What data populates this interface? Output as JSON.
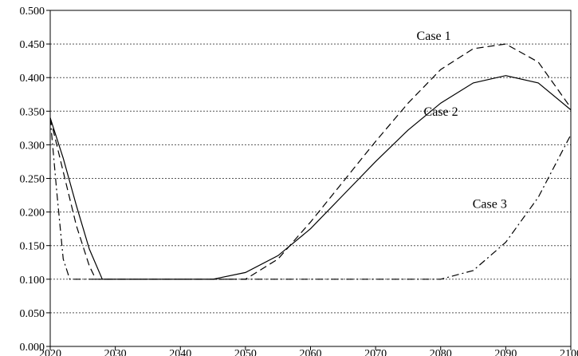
{
  "chart_data": {
    "type": "line",
    "title": "",
    "xlabel": "",
    "ylabel": "",
    "xlim": [
      2020,
      2100
    ],
    "ylim": [
      0.0,
      0.5
    ],
    "grid": "horizontal dotted",
    "x_ticks": [
      "2020",
      "2030",
      "2040",
      "2050",
      "2060",
      "2070",
      "2080",
      "2090",
      "2100"
    ],
    "y_ticks": [
      "0.000",
      "0.050",
      "0.100",
      "0.150",
      "0.200",
      "0.250",
      "0.300",
      "0.350",
      "0.400",
      "0.450",
      "0.500"
    ],
    "series": [
      {
        "name": "Case 1",
        "style": "dashed",
        "color": "#000000",
        "points": [
          [
            2020,
            0.34
          ],
          [
            2022,
            0.26
          ],
          [
            2024,
            0.18
          ],
          [
            2026,
            0.12
          ],
          [
            2027,
            0.1
          ],
          [
            2030,
            0.1
          ],
          [
            2040,
            0.1
          ],
          [
            2050,
            0.1
          ],
          [
            2055,
            0.13
          ],
          [
            2060,
            0.185
          ],
          [
            2065,
            0.245
          ],
          [
            2070,
            0.305
          ],
          [
            2075,
            0.362
          ],
          [
            2080,
            0.412
          ],
          [
            2085,
            0.443
          ],
          [
            2090,
            0.45
          ],
          [
            2095,
            0.423
          ],
          [
            2100,
            0.355
          ]
        ]
      },
      {
        "name": "Case 2",
        "style": "solid",
        "color": "#000000",
        "points": [
          [
            2020,
            0.34
          ],
          [
            2022,
            0.28
          ],
          [
            2024,
            0.21
          ],
          [
            2026,
            0.145
          ],
          [
            2028,
            0.1
          ],
          [
            2030,
            0.1
          ],
          [
            2040,
            0.1
          ],
          [
            2045,
            0.1
          ],
          [
            2050,
            0.11
          ],
          [
            2055,
            0.135
          ],
          [
            2060,
            0.175
          ],
          [
            2065,
            0.225
          ],
          [
            2070,
            0.275
          ],
          [
            2075,
            0.322
          ],
          [
            2080,
            0.362
          ],
          [
            2085,
            0.392
          ],
          [
            2090,
            0.403
          ],
          [
            2095,
            0.392
          ],
          [
            2100,
            0.352
          ]
        ]
      },
      {
        "name": "Case 3",
        "style": "dash-dot",
        "color": "#000000",
        "points": [
          [
            2020,
            0.34
          ],
          [
            2021,
            0.23
          ],
          [
            2022,
            0.13
          ],
          [
            2023,
            0.1
          ],
          [
            2030,
            0.1
          ],
          [
            2040,
            0.1
          ],
          [
            2050,
            0.1
          ],
          [
            2060,
            0.1
          ],
          [
            2070,
            0.1
          ],
          [
            2080,
            0.1
          ],
          [
            2085,
            0.113
          ],
          [
            2090,
            0.155
          ],
          [
            2095,
            0.222
          ],
          [
            2100,
            0.315
          ]
        ]
      }
    ],
    "annotations": [
      {
        "text": "Case 1",
        "x": 2076.3,
        "y": 0.456
      },
      {
        "text": "Case 2",
        "x": 2077.4,
        "y": 0.343
      },
      {
        "text": "Case 3",
        "x": 2084.9,
        "y": 0.206
      }
    ]
  }
}
